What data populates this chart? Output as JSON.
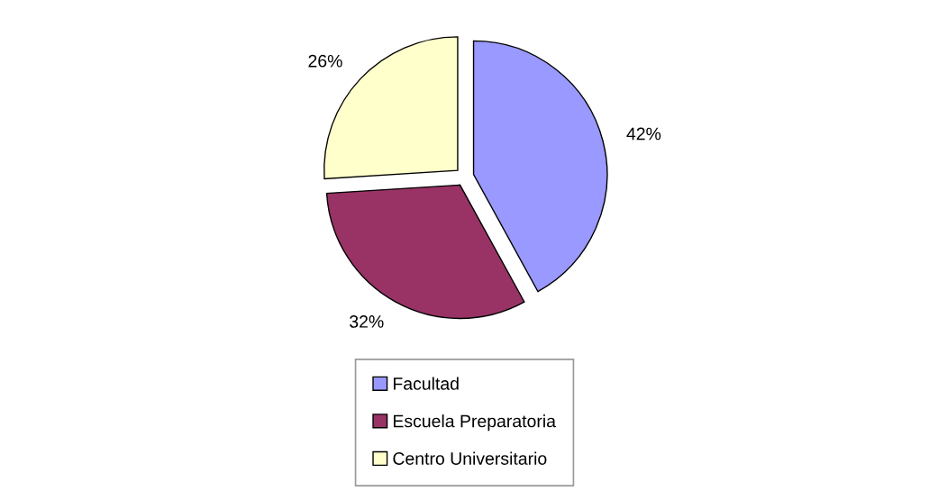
{
  "chart_data": {
    "type": "pie",
    "categories": [
      "Facultad",
      "Escuela Preparatoria",
      "Centro Universitario"
    ],
    "values": [
      42,
      32,
      26
    ],
    "colors": [
      "#9999ff",
      "#993366",
      "#ffffcc"
    ],
    "value_labels": [
      "42%",
      "32%",
      "26%"
    ],
    "legend": "bottom"
  }
}
